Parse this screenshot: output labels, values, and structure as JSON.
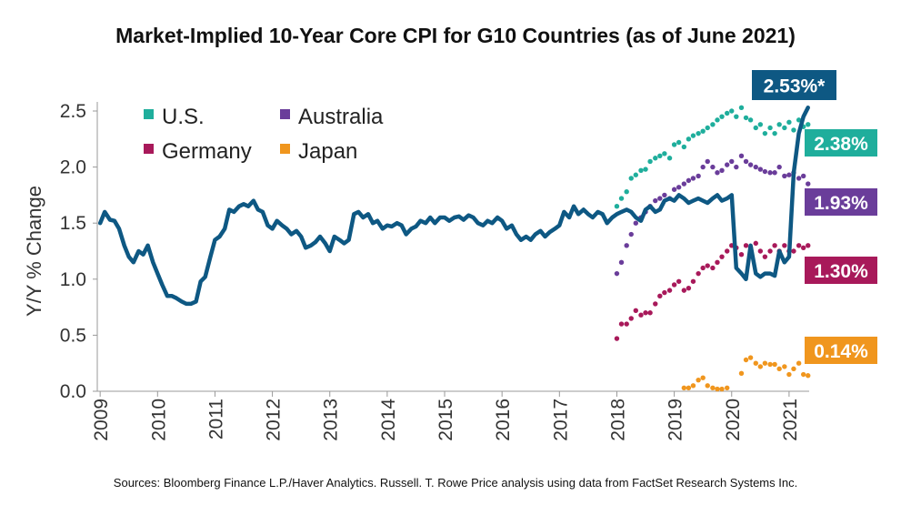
{
  "chart_data": {
    "type": "line",
    "title": "Market-Implied 10-Year Core CPI for G10 Countries (as of June 2021)",
    "ylabel": "Y/Y % Change",
    "xlabel": "",
    "xlim": [
      2008.95,
      2021.35
    ],
    "ylim": [
      0,
      2.5
    ],
    "y_ticks": [
      "0.0",
      "0.5",
      "1.0",
      "1.5",
      "2.0",
      "2.5"
    ],
    "x_ticks": [
      "2009",
      "2010",
      "2011",
      "2012",
      "2013",
      "2014",
      "2015",
      "2016",
      "2017",
      "2018",
      "2019",
      "2020",
      "2021"
    ],
    "legend": {
      "position": "top-left",
      "items": [
        "U.S.",
        "Australia",
        "Germany",
        "Japan"
      ]
    },
    "source": "Sources: Bloomberg Finance L.P./Haver Analytics. Russell. T. Rowe Price analysis using data from FactSet Research Systems Inc.",
    "colors": {
      "u_s": "#1fae9c",
      "australia": "#6a3d9a",
      "germany": "#a8195a",
      "japan": "#f0961e",
      "main": "#0e5883",
      "axis": "#999999"
    },
    "series": [
      {
        "name": "U.S.",
        "style": "dots",
        "color_key": "u_s",
        "callout": "2.38%",
        "x": [
          2018.0,
          2018.08,
          2018.17,
          2018.25,
          2018.33,
          2018.42,
          2018.5,
          2018.58,
          2018.67,
          2018.75,
          2018.83,
          2018.92,
          2019.0,
          2019.08,
          2019.17,
          2019.25,
          2019.33,
          2019.42,
          2019.5,
          2019.58,
          2019.67,
          2019.75,
          2019.83,
          2019.92,
          2020.0,
          2020.08,
          2020.17,
          2020.25,
          2020.33,
          2020.42,
          2020.5,
          2020.58,
          2020.67,
          2020.75,
          2020.83,
          2020.92,
          2021.0,
          2021.08,
          2021.17,
          2021.25,
          2021.33
        ],
        "y": [
          1.65,
          1.72,
          1.78,
          1.9,
          1.93,
          1.97,
          1.98,
          2.05,
          2.08,
          2.1,
          2.12,
          2.08,
          2.2,
          2.22,
          2.18,
          2.25,
          2.28,
          2.3,
          2.32,
          2.35,
          2.38,
          2.42,
          2.45,
          2.48,
          2.5,
          2.45,
          2.53,
          2.44,
          2.42,
          2.35,
          2.38,
          2.3,
          2.35,
          2.3,
          2.38,
          2.35,
          2.4,
          2.33,
          2.42,
          2.36,
          2.38
        ]
      },
      {
        "name": "Australia",
        "style": "dots",
        "color_key": "australia",
        "callout": "1.93%",
        "x": [
          2018.0,
          2018.08,
          2018.17,
          2018.25,
          2018.33,
          2018.42,
          2018.5,
          2018.58,
          2018.67,
          2018.75,
          2018.83,
          2018.92,
          2019.0,
          2019.08,
          2019.17,
          2019.25,
          2019.33,
          2019.42,
          2019.5,
          2019.58,
          2019.67,
          2019.75,
          2019.83,
          2019.92,
          2020.0,
          2020.08,
          2020.17,
          2020.25,
          2020.33,
          2020.42,
          2020.5,
          2020.58,
          2020.67,
          2020.75,
          2020.83,
          2020.92,
          2021.0,
          2021.08,
          2021.17,
          2021.25,
          2021.33
        ],
        "y": [
          1.05,
          1.15,
          1.3,
          1.4,
          1.5,
          1.55,
          1.6,
          1.65,
          1.7,
          1.72,
          1.75,
          1.72,
          1.8,
          1.82,
          1.85,
          1.88,
          1.9,
          1.92,
          2.0,
          2.05,
          2.0,
          1.95,
          1.97,
          2.02,
          2.05,
          2.0,
          2.1,
          2.05,
          2.02,
          2.0,
          1.98,
          1.96,
          1.95,
          1.95,
          2.0,
          1.92,
          1.93,
          1.95,
          1.9,
          1.92,
          1.85
        ]
      },
      {
        "name": "Germany",
        "style": "dots",
        "color_key": "germany",
        "callout": "1.30%",
        "x": [
          2018.0,
          2018.08,
          2018.17,
          2018.25,
          2018.33,
          2018.42,
          2018.5,
          2018.58,
          2018.67,
          2018.75,
          2018.83,
          2018.92,
          2019.0,
          2019.08,
          2019.17,
          2019.25,
          2019.33,
          2019.42,
          2019.5,
          2019.58,
          2019.67,
          2019.75,
          2019.83,
          2019.92,
          2020.0,
          2020.08,
          2020.17,
          2020.25,
          2020.33,
          2020.42,
          2020.5,
          2020.58,
          2020.67,
          2020.75,
          2020.83,
          2020.92,
          2021.0,
          2021.08,
          2021.17,
          2021.25,
          2021.33
        ],
        "y": [
          0.47,
          0.6,
          0.6,
          0.65,
          0.72,
          0.68,
          0.7,
          0.7,
          0.78,
          0.85,
          0.88,
          0.9,
          0.95,
          0.98,
          0.9,
          0.92,
          0.98,
          1.05,
          1.1,
          1.12,
          1.1,
          1.15,
          1.2,
          1.25,
          1.3,
          1.28,
          1.22,
          1.3,
          1.28,
          1.32,
          1.25,
          1.2,
          1.25,
          1.3,
          1.25,
          1.3,
          1.25,
          1.25,
          1.3,
          1.28,
          1.3
        ]
      },
      {
        "name": "Japan",
        "style": "dots",
        "color_key": "japan",
        "callout": "0.14%",
        "x": [
          2019.17,
          2019.25,
          2019.33,
          2019.42,
          2019.5,
          2019.58,
          2019.67,
          2019.75,
          2019.83,
          2019.92,
          2020.17,
          2020.25,
          2020.33,
          2020.42,
          2020.5,
          2020.58,
          2020.67,
          2020.75,
          2020.83,
          2020.92,
          2021.0,
          2021.08,
          2021.17,
          2021.25,
          2021.33
        ],
        "y": [
          0.03,
          0.03,
          0.05,
          0.1,
          0.12,
          0.05,
          0.03,
          0.02,
          0.02,
          0.03,
          0.16,
          0.28,
          0.3,
          0.25,
          0.22,
          0.25,
          0.24,
          0.24,
          0.2,
          0.22,
          0.15,
          0.2,
          0.25,
          0.15,
          0.14
        ]
      },
      {
        "name": "",
        "style": "line",
        "color_key": "main",
        "callout": "2.53%*",
        "x": [
          2009.0,
          2009.08,
          2009.17,
          2009.25,
          2009.33,
          2009.42,
          2009.5,
          2009.58,
          2009.67,
          2009.75,
          2009.83,
          2009.92,
          2010.0,
          2010.08,
          2010.17,
          2010.25,
          2010.33,
          2010.42,
          2010.5,
          2010.58,
          2010.67,
          2010.75,
          2010.83,
          2010.92,
          2011.0,
          2011.08,
          2011.17,
          2011.25,
          2011.33,
          2011.42,
          2011.5,
          2011.58,
          2011.67,
          2011.75,
          2011.83,
          2011.92,
          2012.0,
          2012.08,
          2012.17,
          2012.25,
          2012.33,
          2012.42,
          2012.5,
          2012.58,
          2012.67,
          2012.75,
          2012.83,
          2012.92,
          2013.0,
          2013.08,
          2013.17,
          2013.25,
          2013.33,
          2013.42,
          2013.5,
          2013.58,
          2013.67,
          2013.75,
          2013.83,
          2013.92,
          2014.0,
          2014.08,
          2014.17,
          2014.25,
          2014.33,
          2014.42,
          2014.5,
          2014.58,
          2014.67,
          2014.75,
          2014.83,
          2014.92,
          2015.0,
          2015.08,
          2015.17,
          2015.25,
          2015.33,
          2015.42,
          2015.5,
          2015.58,
          2015.67,
          2015.75,
          2015.83,
          2015.92,
          2016.0,
          2016.08,
          2016.17,
          2016.25,
          2016.33,
          2016.42,
          2016.5,
          2016.58,
          2016.67,
          2016.75,
          2016.83,
          2016.92,
          2017.0,
          2017.08,
          2017.17,
          2017.25,
          2017.33,
          2017.42,
          2017.5,
          2017.58,
          2017.67,
          2017.75,
          2017.83,
          2017.92,
          2018.0,
          2018.08,
          2018.17,
          2018.25,
          2018.33,
          2018.42,
          2018.5,
          2018.58,
          2018.67,
          2018.75,
          2018.83,
          2018.92,
          2019.0,
          2019.08,
          2019.17,
          2019.25,
          2019.33,
          2019.42,
          2019.5,
          2019.58,
          2019.67,
          2019.75,
          2019.83,
          2019.92,
          2020.0,
          2020.08,
          2020.17,
          2020.25,
          2020.33,
          2020.42,
          2020.5,
          2020.58,
          2020.67,
          2020.75,
          2020.83,
          2020.92,
          2021.0,
          2021.08,
          2021.17,
          2021.25,
          2021.33
        ],
        "y": [
          1.5,
          1.6,
          1.53,
          1.52,
          1.45,
          1.3,
          1.2,
          1.15,
          1.25,
          1.22,
          1.3,
          1.15,
          1.05,
          0.95,
          0.85,
          0.85,
          0.83,
          0.8,
          0.78,
          0.78,
          0.8,
          0.98,
          1.02,
          1.2,
          1.35,
          1.38,
          1.45,
          1.62,
          1.6,
          1.65,
          1.67,
          1.65,
          1.7,
          1.62,
          1.6,
          1.48,
          1.45,
          1.52,
          1.48,
          1.45,
          1.4,
          1.43,
          1.38,
          1.28,
          1.3,
          1.33,
          1.38,
          1.32,
          1.25,
          1.38,
          1.35,
          1.32,
          1.35,
          1.58,
          1.6,
          1.55,
          1.58,
          1.5,
          1.52,
          1.45,
          1.48,
          1.47,
          1.5,
          1.48,
          1.4,
          1.45,
          1.47,
          1.52,
          1.5,
          1.55,
          1.5,
          1.55,
          1.55,
          1.52,
          1.55,
          1.56,
          1.53,
          1.57,
          1.55,
          1.5,
          1.48,
          1.52,
          1.5,
          1.55,
          1.52,
          1.45,
          1.48,
          1.4,
          1.35,
          1.38,
          1.35,
          1.4,
          1.43,
          1.38,
          1.42,
          1.45,
          1.48,
          1.6,
          1.55,
          1.65,
          1.58,
          1.62,
          1.58,
          1.55,
          1.6,
          1.58,
          1.5,
          1.55,
          1.58,
          1.6,
          1.62,
          1.6,
          1.55,
          1.52,
          1.62,
          1.65,
          1.6,
          1.62,
          1.7,
          1.72,
          1.7,
          1.75,
          1.72,
          1.68,
          1.7,
          1.72,
          1.7,
          1.68,
          1.72,
          1.75,
          1.7,
          1.72,
          1.75,
          1.1,
          1.05,
          1.0,
          1.3,
          1.05,
          1.02,
          1.05,
          1.05,
          1.03,
          1.25,
          1.15,
          1.2,
          1.95,
          2.3,
          2.45,
          2.53
        ]
      }
    ]
  }
}
